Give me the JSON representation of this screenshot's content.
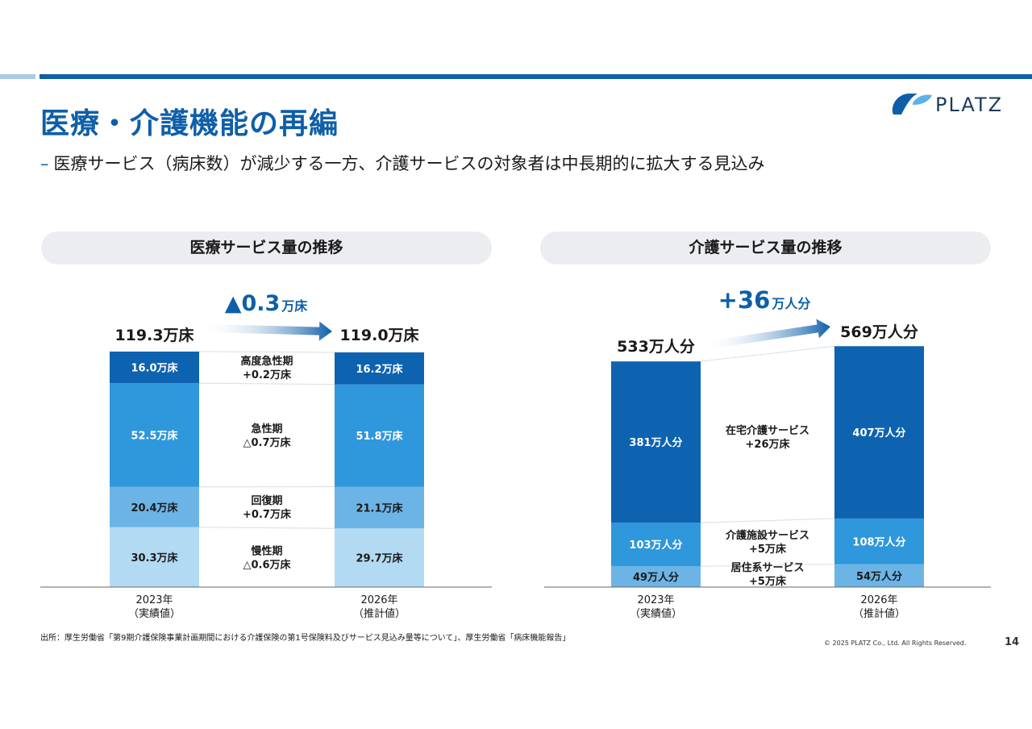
{
  "slide": {
    "title": "医療・介護機能の再編",
    "subtitle_dash": "–",
    "subtitle": "医療サービス（病床数）が減少する一方、介護サービスの対象者は中長期的に拡大する見込み",
    "logo_text": "PLATZ",
    "source": "出所：厚生労働省「第9期介護保険事業計画期間における介護保険の第1号保険料及びサービス見込み量等について」、厚生労働省「病床機能報告」",
    "copyright": "© 2025 PLATZ Co., Ltd. All Rights Reserved.",
    "page_number": "14"
  },
  "colors": {
    "accent": "#0e5fa8",
    "bar_dark": "#0e63b0",
    "bar_mid": "#2f97db",
    "bar_light": "#6cb4e6",
    "bar_lightest": "#b3daf3",
    "pill_bg": "#ebedf0"
  },
  "chart_data": [
    {
      "type": "bar",
      "stacked": true,
      "title": "医療サービス量の推移",
      "unit": "万床",
      "categories": [
        "2023年\n（実績値）",
        "2026年\n（推計値）"
      ],
      "category_lines": [
        [
          "2023年",
          "（実績値）"
        ],
        [
          "2026年",
          "（推計値）"
        ]
      ],
      "series": [
        {
          "name": "慢性期",
          "values": [
            30.3,
            29.7
          ],
          "labels": [
            "30.3万床",
            "29.7万床"
          ],
          "color": "#b3daf3",
          "text_color": "#1a1a1a",
          "change_lines": [
            "慢性期",
            "△0.6万床"
          ]
        },
        {
          "name": "回復期",
          "values": [
            20.4,
            21.1
          ],
          "labels": [
            "20.4万床",
            "21.1万床"
          ],
          "color": "#6cb4e6",
          "text_color": "#1a1a1a",
          "change_lines": [
            "回復期",
            "+0.7万床"
          ]
        },
        {
          "name": "急性期",
          "values": [
            52.5,
            51.8
          ],
          "labels": [
            "52.5万床",
            "51.8万床"
          ],
          "color": "#2f97db",
          "text_color": "#ffffff",
          "change_lines": [
            "急性期",
            "△0.7万床"
          ]
        },
        {
          "name": "高度急性期",
          "values": [
            16.0,
            16.2
          ],
          "labels": [
            "16.0万床",
            "16.2万床"
          ],
          "color": "#0e63b0",
          "text_color": "#ffffff",
          "change_lines": [
            "高度急性期",
            "+0.2万床"
          ]
        }
      ],
      "totals": [
        "119.3万床",
        "119.0万床"
      ],
      "total_values": [
        119.3,
        119.0
      ],
      "change_big": "▲0.3",
      "change_unit": "万床"
    },
    {
      "type": "bar",
      "stacked": true,
      "title": "介護サービス量の推移",
      "unit": "万人分",
      "categories": [
        "2023年\n（実績値）",
        "2026年\n（推計値）"
      ],
      "category_lines": [
        [
          "2023年",
          "（実績値）"
        ],
        [
          "2026年",
          "（推計値）"
        ]
      ],
      "series": [
        {
          "name": "居住系サービス",
          "values": [
            49,
            54
          ],
          "labels": [
            "49万人分",
            "54万人分"
          ],
          "color": "#6cb4e6",
          "text_color": "#1a1a1a",
          "change_lines": [
            "居住系サービス",
            "+5万床"
          ]
        },
        {
          "name": "介護施設サービス",
          "values": [
            103,
            108
          ],
          "labels": [
            "103万人分",
            "108万人分"
          ],
          "color": "#2f97db",
          "text_color": "#ffffff",
          "change_lines": [
            "介護施設サービス",
            "+5万床"
          ]
        },
        {
          "name": "在宅介護サービス",
          "values": [
            381,
            407
          ],
          "labels": [
            "381万人分",
            "407万人分"
          ],
          "color": "#0e63b0",
          "text_color": "#ffffff",
          "change_lines": [
            "在宅介護サービス",
            "+26万床"
          ]
        }
      ],
      "totals": [
        "533万人分",
        "569万人分"
      ],
      "total_values": [
        533,
        569
      ],
      "change_big": "+36",
      "change_unit": "万人分"
    }
  ]
}
